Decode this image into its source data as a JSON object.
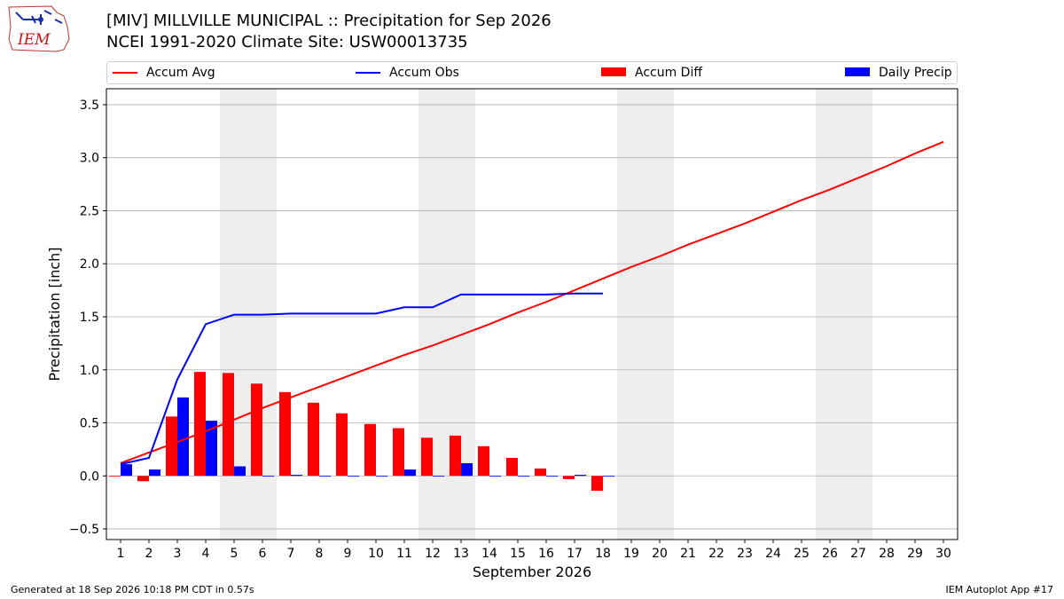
{
  "header": {
    "title_line1": "[MIV] MILLVILLE MUNICIPAL :: Precipitation for Sep 2026",
    "title_line2": "NCEI 1991-2020 Climate Site: USW00013735",
    "logo_text": "IEM"
  },
  "footer": {
    "left": "Generated at 18 Sep 2026 10:18 PM CDT in 0.57s",
    "right": "IEM Autoplot App #17"
  },
  "colors": {
    "accum_avg": "#ff0000",
    "accum_obs": "#0000ff",
    "accum_diff": "#ff0000",
    "daily_precip": "#0000ff",
    "weekend_shade": "#eeeeee",
    "grid": "#b0b0b0"
  },
  "chart_data": {
    "type": "bar",
    "xlabel": "September 2026",
    "ylabel": "Precipitation [inch]",
    "xlim": [
      0.5,
      30.5
    ],
    "ylim": [
      -0.6,
      3.65
    ],
    "yticks": [
      -0.5,
      0.0,
      0.5,
      1.0,
      1.5,
      2.0,
      2.5,
      3.0,
      3.5
    ],
    "ytick_labels": [
      "−0.5",
      "0.0",
      "0.5",
      "1.0",
      "1.5",
      "2.0",
      "2.5",
      "3.0",
      "3.5"
    ],
    "days": [
      1,
      2,
      3,
      4,
      5,
      6,
      7,
      8,
      9,
      10,
      11,
      12,
      13,
      14,
      15,
      16,
      17,
      18,
      19,
      20,
      21,
      22,
      23,
      24,
      25,
      26,
      27,
      28,
      29,
      30
    ],
    "day_labels": [
      "1",
      "2",
      "3",
      "4",
      "5",
      "6",
      "7",
      "8",
      "9",
      "10",
      "11",
      "12",
      "13",
      "14",
      "15",
      "16",
      "17",
      "18",
      "19",
      "20",
      "21",
      "22",
      "23",
      "24",
      "25",
      "26",
      "27",
      "28",
      "29",
      "30"
    ],
    "grid": "horizontal",
    "legend_position": "top",
    "shaded_weekends": [
      [
        5,
        6
      ],
      [
        12,
        13
      ],
      [
        19,
        20
      ],
      [
        26,
        27
      ]
    ],
    "series": [
      {
        "name": "Accum Avg",
        "kind": "line",
        "values": [
          0.12,
          0.22,
          0.32,
          0.42,
          0.53,
          0.64,
          0.74,
          0.84,
          0.94,
          1.04,
          1.14,
          1.23,
          1.33,
          1.43,
          1.54,
          1.64,
          1.75,
          1.86,
          1.97,
          2.07,
          2.18,
          2.28,
          2.38,
          2.49,
          2.6,
          2.7,
          2.81,
          2.92,
          3.04,
          3.15
        ]
      },
      {
        "name": "Accum Obs",
        "kind": "line",
        "values": [
          0.11,
          0.17,
          0.91,
          1.43,
          1.52,
          1.52,
          1.53,
          1.53,
          1.53,
          1.53,
          1.59,
          1.59,
          1.71,
          1.71,
          1.71,
          1.71,
          1.72,
          1.72
        ]
      },
      {
        "name": "Accum Diff",
        "kind": "bar",
        "values": [
          0.0,
          -0.05,
          0.56,
          0.98,
          0.97,
          0.87,
          0.79,
          0.69,
          0.59,
          0.49,
          0.45,
          0.36,
          0.38,
          0.28,
          0.17,
          0.07,
          -0.03,
          -0.14
        ]
      },
      {
        "name": "Daily Precip",
        "kind": "bar",
        "values": [
          0.11,
          0.06,
          0.74,
          0.52,
          0.09,
          0.0,
          0.01,
          0.0,
          0.0,
          0.0,
          0.06,
          0.0,
          0.12,
          0.0,
          0.0,
          0.0,
          0.01,
          0.0
        ]
      }
    ]
  }
}
